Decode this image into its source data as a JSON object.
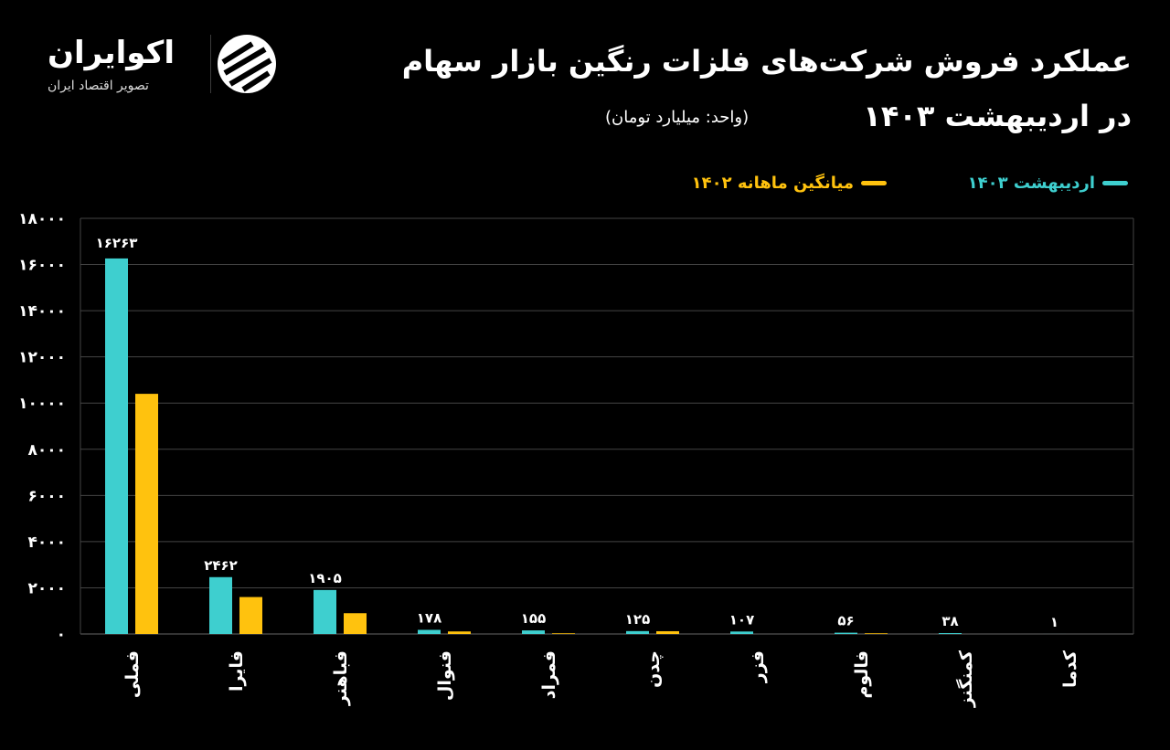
{
  "header": {
    "title_line1": "عملکرد فروش شرکت‌های فلزات رنگین بازار سهام",
    "title_line2": "در اردیبهشت ۱۴۰۳",
    "unit": "(واحد: میلیارد تومان)"
  },
  "logo": {
    "name": "اکوایران",
    "subtitle": "تصویر اقتصاد ایران"
  },
  "colors": {
    "series1": "#3ecfcf",
    "series2": "#ffc20e"
  },
  "chart_data": {
    "type": "bar",
    "categories": [
      "فملی",
      "فایرا",
      "فباهنر",
      "فنوال",
      "فمراد",
      "چدن",
      "فزر",
      "فالوم",
      "کمنگنز",
      "کدما"
    ],
    "series": [
      {
        "name": "اردیبهشت ۱۴۰۳",
        "values": [
          16263,
          2462,
          1905,
          178,
          155,
          125,
          107,
          56,
          38,
          1
        ],
        "labels": [
          "۱۶۲۶۳",
          "۲۴۶۲",
          "۱۹۰۵",
          "۱۷۸",
          "۱۵۵",
          "۱۲۵",
          "۱۰۷",
          "۵۶",
          "۳۸",
          "۱"
        ]
      },
      {
        "name": "میانگین ماهانه ۱۴۰۲",
        "values": [
          10400,
          1600,
          900,
          110,
          30,
          120,
          0,
          30,
          0,
          0
        ]
      }
    ],
    "ylim": [
      0,
      18000
    ],
    "yticks": [
      "۰",
      "۲۰۰۰",
      "۴۰۰۰",
      "۶۰۰۰",
      "۸۰۰۰",
      "۱۰۰۰۰",
      "۱۲۰۰۰",
      "۱۴۰۰۰",
      "۱۶۰۰۰",
      "۱۸۰۰۰"
    ],
    "grid": true,
    "legend": "top-right"
  }
}
